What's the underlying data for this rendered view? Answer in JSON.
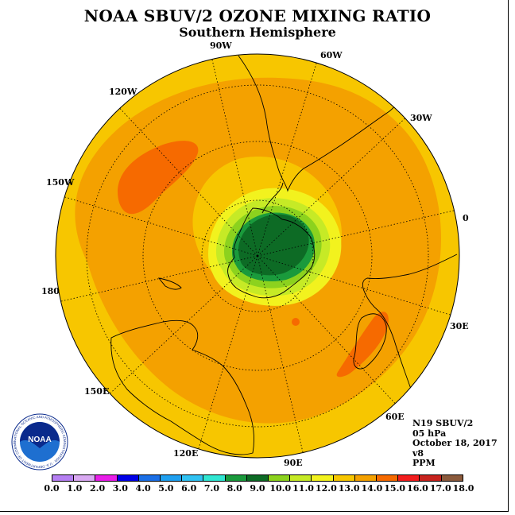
{
  "header": {
    "title": "NOAA SBUV/2 OZONE MIXING RATIO",
    "subtitle": "Southern Hemisphere"
  },
  "map": {
    "projection": "polar-stereographic-south",
    "graticule": "dotted",
    "longitude_labels": [
      "90W",
      "60W",
      "30W",
      "0",
      "30E",
      "60E",
      "90E",
      "120E",
      "150E",
      "180",
      "150W",
      "120W"
    ]
  },
  "info": {
    "satellite": "N19 SBUV/2",
    "level": "05 hPa",
    "date": "October 18, 2017",
    "version": "v8",
    "units": "PPM"
  },
  "colorbar": {
    "ticks": [
      "0.0",
      "1.0",
      "2.0",
      "3.0",
      "4.0",
      "5.0",
      "6.0",
      "7.0",
      "8.0",
      "9.0",
      "10.0",
      "11.0",
      "12.0",
      "13.0",
      "14.0",
      "15.0",
      "16.0",
      "17.0",
      "18.0"
    ],
    "colors": [
      "#b57ff2",
      "#d9a9f2",
      "#e81ee8",
      "#0000e6",
      "#1b6fe6",
      "#1fa0f0",
      "#30c2f2",
      "#30e6d2",
      "#1a9a3c",
      "#0d6b25",
      "#8cd21e",
      "#c6ea26",
      "#f2f21e",
      "#f7c600",
      "#f4a100",
      "#f66a00",
      "#f21e1e",
      "#c7231e",
      "#8b5a3c"
    ]
  },
  "logo": {
    "text": "NOAA",
    "ring_text": "NATIONAL OCEANIC AND ATMOSPHERIC ADMINISTRATION · U.S. DEPARTMENT OF COMMERCE",
    "colors": {
      "navy": "#0a2a8c",
      "blue": "#1e6fd0",
      "white": "#ffffff"
    }
  }
}
